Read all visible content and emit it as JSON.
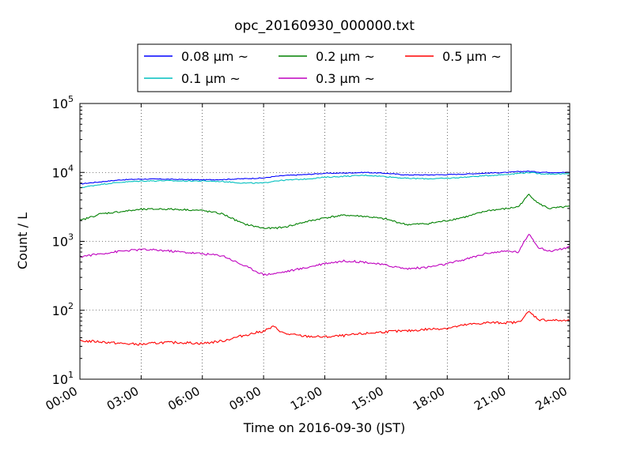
{
  "chart_data": {
    "type": "line",
    "title": "opc_20160930_000000.txt",
    "xlabel": "Time on 2016-09-30 (JST)",
    "ylabel": "Count / L",
    "yscale": "log",
    "xlim": [
      "00:00",
      "24:00"
    ],
    "ylim": [
      10,
      100000
    ],
    "grid": true,
    "legend": {
      "location": "top-center, above plot",
      "columns": 3
    },
    "x_ticks": [
      "00:00",
      "03:00",
      "06:00",
      "09:00",
      "12:00",
      "15:00",
      "18:00",
      "21:00",
      "24:00"
    ],
    "y_ticks": [
      {
        "base": "10",
        "exp": "1"
      },
      {
        "base": "10",
        "exp": "2"
      },
      {
        "base": "10",
        "exp": "3"
      },
      {
        "base": "10",
        "exp": "4"
      },
      {
        "base": "10",
        "exp": "5"
      }
    ],
    "x": [
      "00:00",
      "01:00",
      "02:00",
      "03:00",
      "04:00",
      "05:00",
      "06:00",
      "07:00",
      "08:00",
      "09:00",
      "09:30",
      "10:00",
      "11:00",
      "12:00",
      "13:00",
      "14:00",
      "15:00",
      "16:00",
      "17:00",
      "18:00",
      "19:00",
      "20:00",
      "21:00",
      "21:30",
      "22:00",
      "22:30",
      "23:00",
      "24:00"
    ],
    "series": [
      {
        "name": "0.08 µm ~",
        "color": "#0000ff",
        "values": [
          6800,
          7300,
          7800,
          8000,
          8000,
          7900,
          7800,
          7900,
          8100,
          8300,
          8700,
          9000,
          9300,
          9700,
          9800,
          10000,
          9700,
          9200,
          9200,
          9300,
          9500,
          9800,
          10000,
          10300,
          10400,
          10100,
          10000,
          10000
        ]
      },
      {
        "name": "0.1 µm ~",
        "color": "#00bfbf",
        "values": [
          6000,
          6700,
          7200,
          7500,
          7600,
          7500,
          7500,
          7400,
          7000,
          7000,
          7500,
          7700,
          8000,
          8500,
          8800,
          9100,
          8700,
          8200,
          8100,
          8200,
          8600,
          9000,
          9400,
          9700,
          10000,
          9600,
          9500,
          9500
        ]
      },
      {
        "name": "0.2 µm ~",
        "color": "#008000",
        "values": [
          2000,
          2500,
          2700,
          2900,
          2950,
          2900,
          2800,
          2500,
          1800,
          1550,
          1550,
          1600,
          1900,
          2200,
          2400,
          2300,
          2100,
          1750,
          1800,
          2000,
          2300,
          2800,
          3000,
          3200,
          4800,
          3500,
          3000,
          3200
        ]
      },
      {
        "name": "0.3 µm ~",
        "color": "#bf00bf",
        "values": [
          600,
          660,
          720,
          760,
          740,
          700,
          660,
          620,
          450,
          330,
          340,
          360,
          410,
          480,
          520,
          500,
          450,
          400,
          420,
          470,
          560,
          680,
          720,
          700,
          1300,
          800,
          720,
          820
        ]
      },
      {
        "name": "0.5 µm ~",
        "color": "#ff0000",
        "values": [
          36,
          35,
          33,
          32,
          34,
          34,
          33,
          36,
          43,
          50,
          58,
          46,
          42,
          41,
          43,
          46,
          49,
          50,
          53,
          55,
          62,
          66,
          66,
          67,
          95,
          73,
          72,
          70
        ]
      }
    ]
  }
}
